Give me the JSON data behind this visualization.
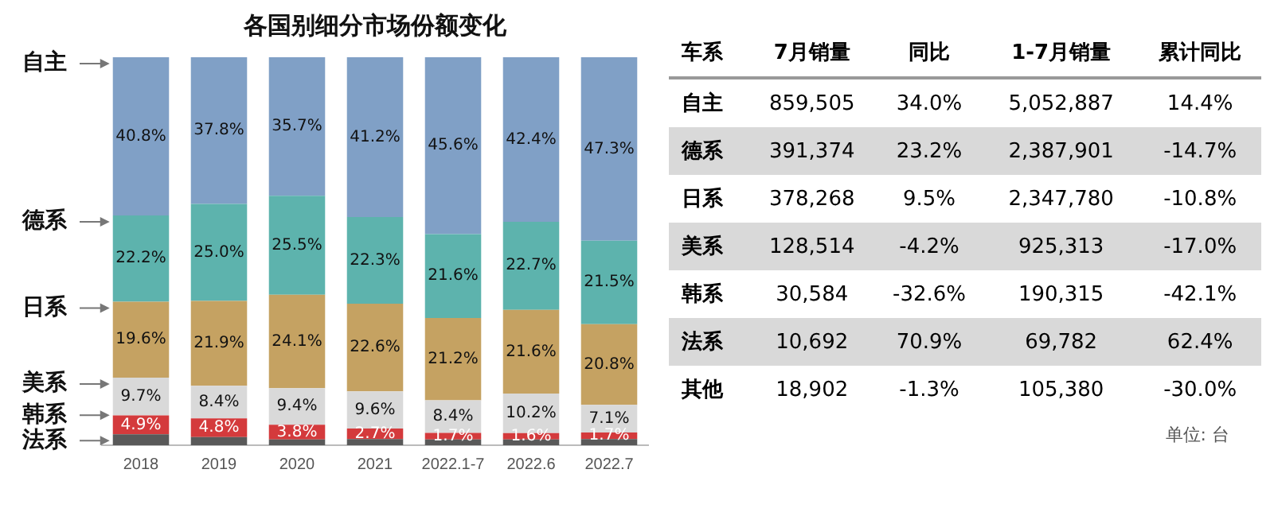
{
  "chart_data": [
    {
      "type": "bar",
      "stacked": true,
      "title": "各国别细分市场份额变化",
      "categories": [
        "2018",
        "2019",
        "2020",
        "2021",
        "2022.1-7",
        "2022.6",
        "2022.7"
      ],
      "ylim": [
        0,
        100
      ],
      "tick_labels": "x",
      "grid": false,
      "legend": false,
      "series": [
        {
          "name": "法系",
          "color": "#595959",
          "values": [
            2.8,
            2.1,
            1.5,
            1.6,
            1.5,
            1.5,
            1.6
          ],
          "value_labels": [
            null,
            null,
            null,
            null,
            null,
            null,
            null
          ]
        },
        {
          "name": "韩系",
          "color": "#d43a3c",
          "values": [
            4.9,
            4.8,
            3.8,
            2.7,
            1.7,
            1.6,
            1.7
          ],
          "value_labels": [
            "4.9%",
            "4.8%",
            "3.8%",
            "2.7%",
            "1.7%",
            "1.6%",
            "1.7%"
          ]
        },
        {
          "name": "美系",
          "color": "#d9d9d9",
          "values": [
            9.7,
            8.4,
            9.4,
            9.6,
            8.4,
            10.2,
            7.1
          ],
          "value_labels": [
            "9.7%",
            "8.4%",
            "9.4%",
            "9.6%",
            "8.4%",
            "10.2%",
            "7.1%"
          ]
        },
        {
          "name": "日系",
          "color": "#c5a262",
          "values": [
            19.6,
            21.9,
            24.1,
            22.6,
            21.2,
            21.6,
            20.8
          ],
          "value_labels": [
            "19.6%",
            "21.9%",
            "24.1%",
            "22.6%",
            "21.2%",
            "21.6%",
            "20.8%"
          ]
        },
        {
          "name": "德系",
          "color": "#5db3ad",
          "values": [
            22.2,
            25.0,
            25.5,
            22.3,
            21.6,
            22.7,
            21.5
          ],
          "value_labels": [
            "22.2%",
            "25.0%",
            "25.5%",
            "22.3%",
            "21.6%",
            "22.7%",
            "21.5%"
          ]
        },
        {
          "name": "自主",
          "color": "#80a0c6",
          "values": [
            40.8,
            37.8,
            35.7,
            41.2,
            45.6,
            42.4,
            47.3
          ],
          "value_labels": [
            "40.8%",
            "37.8%",
            "35.7%",
            "41.2%",
            "45.6%",
            "42.4%",
            "47.3%"
          ]
        }
      ]
    },
    {
      "type": "other",
      "annotations": [
        "车系",
        "7月销量",
        "同比",
        "1-7月销量",
        "累计同比",
        "自主",
        "859,505",
        "34.0%",
        "5,052,887",
        "14.4%",
        "德系",
        "391,374",
        "23.2%",
        "2,387,901",
        "-14.7%",
        "日系",
        "378,268",
        "9.5%",
        "2,347,780",
        "-10.8%",
        "美系",
        "128,514",
        "-4.2%",
        "925,313",
        "-17.0%",
        "韩系",
        "30,584",
        "-32.6%",
        "190,315",
        "-42.1%",
        "法系",
        "10,692",
        "70.9%",
        "69,782",
        "62.4%",
        "其他",
        "18,902",
        "-1.3%",
        "105,380",
        "-30.0%",
        "单位: 台"
      ]
    }
  ]
}
